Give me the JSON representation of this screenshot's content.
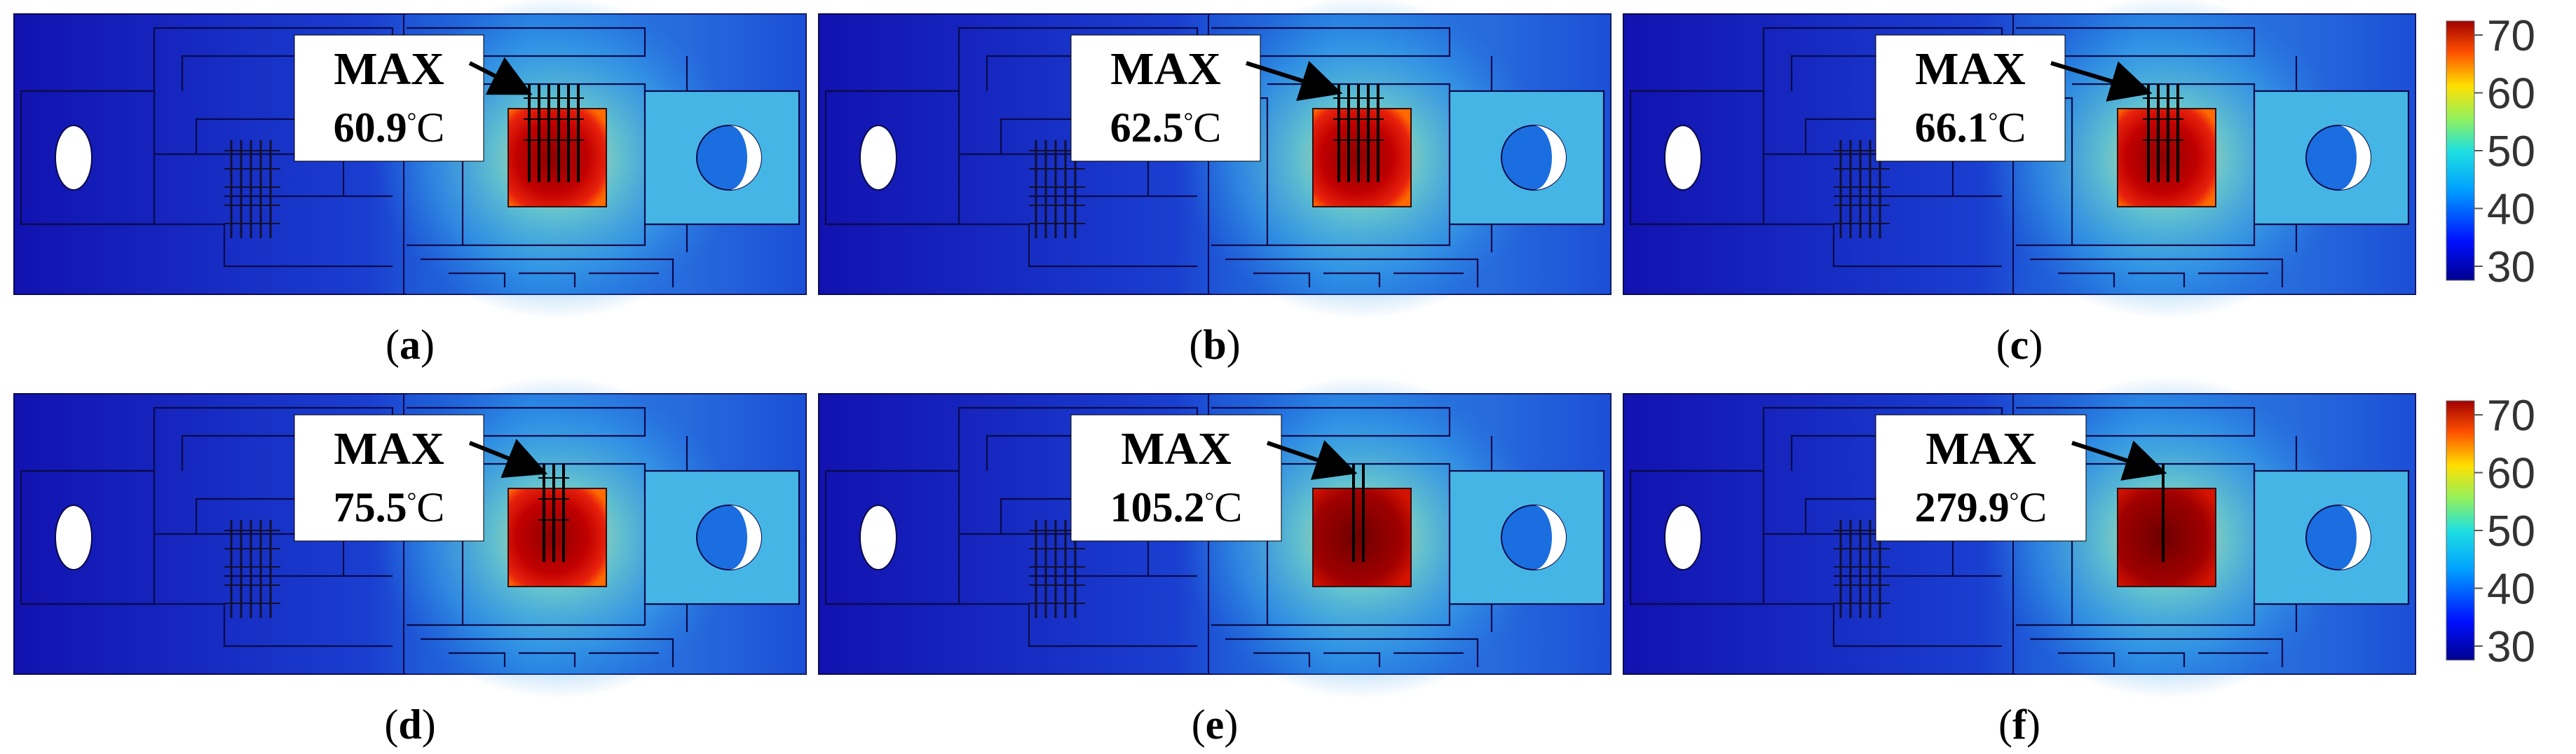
{
  "panels": [
    {
      "label": "a",
      "max_label": "MAX",
      "max_value": "60.9",
      "unit": "°C",
      "hotspot_lines": 6
    },
    {
      "label": "b",
      "max_label": "MAX",
      "max_value": "62.5",
      "unit": "°C",
      "hotspot_lines": 5
    },
    {
      "label": "c",
      "max_label": "MAX",
      "max_value": "66.1",
      "unit": "°C",
      "hotspot_lines": 4
    },
    {
      "label": "d",
      "max_label": "MAX",
      "max_value": "75.5",
      "unit": "°C",
      "hotspot_lines": 3
    },
    {
      "label": "e",
      "max_label": "MAX",
      "max_value": "105.2",
      "unit": "°C",
      "hotspot_lines": 2
    },
    {
      "label": "f",
      "max_label": "MAX",
      "max_value": "279.9",
      "unit": "°C",
      "hotspot_lines": 1
    }
  ],
  "colorbars": [
    {
      "ticks": [
        "70",
        "60",
        "50",
        "40",
        "30"
      ]
    },
    {
      "ticks": [
        "70",
        "60",
        "50",
        "40",
        "30"
      ]
    }
  ],
  "colors": {
    "cold": "#1515b8",
    "mid": "#1a6ee0",
    "warm": "#38b6e8",
    "tab": "#49bde6",
    "hot": "#c40000",
    "core": "#9a0000"
  }
}
